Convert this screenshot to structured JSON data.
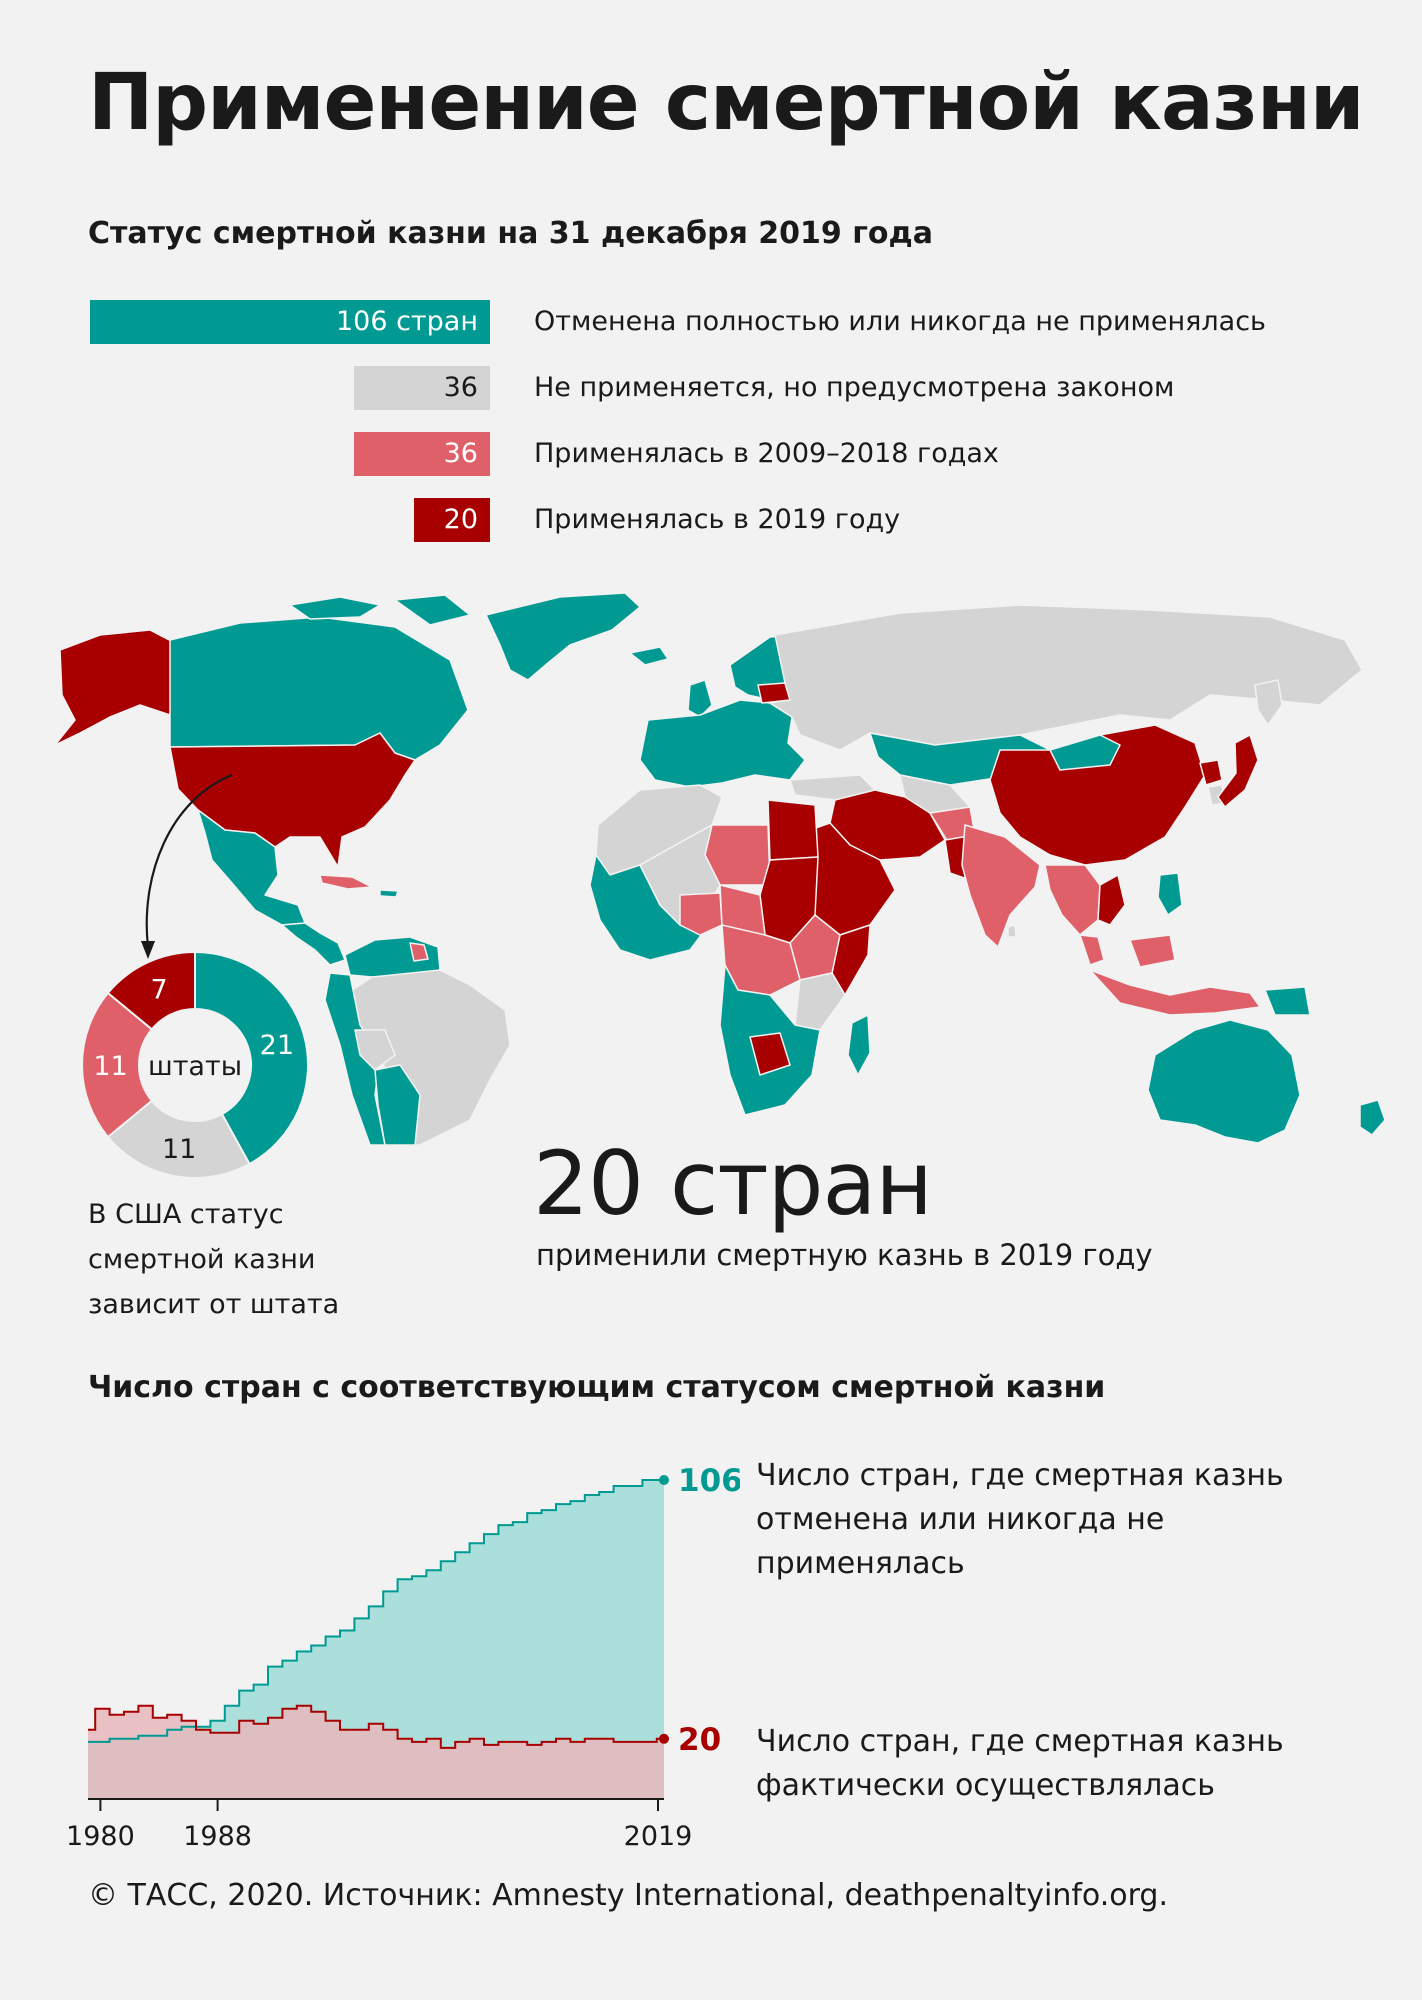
{
  "title": "Применение смертной казни",
  "status_section": {
    "heading": "Статус смертной казни на 31 декабря 2019 года",
    "legend": [
      {
        "value": 106,
        "value_text": "106 стран",
        "label": "Отменена полностью или никогда не применялась",
        "color": "#009a93",
        "text_color": "#ffffff"
      },
      {
        "value": 36,
        "value_text": "36",
        "label": "Не применяется, но предусмотрена законом",
        "color": "#d4d4d4",
        "text_color": "#1a1a1a"
      },
      {
        "value": 36,
        "value_text": "36",
        "label": "Применялась в 2009–2018 годах",
        "color": "#e0606a",
        "text_color": "#ffffff"
      },
      {
        "value": 20,
        "value_text": "20",
        "label": "Применялась в 2019 году",
        "color": "#a80000",
        "text_color": "#ffffff"
      }
    ]
  },
  "us_states": {
    "center_label": "штаты",
    "note": "В США статус смертной казни зависит от штата",
    "segments": [
      {
        "value": 21,
        "color": "#009a93",
        "text_color": "#ffffff"
      },
      {
        "value": 11,
        "color": "#d4d4d4",
        "text_color": "#1a1a1a"
      },
      {
        "value": 11,
        "color": "#e0606a",
        "text_color": "#ffffff"
      },
      {
        "value": 7,
        "color": "#a80000",
        "text_color": "#ffffff"
      }
    ]
  },
  "highlight": {
    "number": "20 стран",
    "caption": "применили смертную казнь в 2019 году"
  },
  "count_section": {
    "heading": "Число стран с соответствующим статусом смертной казни"
  },
  "chart_data": [
    {
      "type": "bar",
      "categories": [
        "Отменена полностью или никогда не применялась",
        "Не применяется, но предусмотрена законом",
        "Применялась в 2009–2018 годах",
        "Применялась в 2019 году"
      ],
      "values": [
        106,
        36,
        36,
        20
      ]
    },
    {
      "type": "pie",
      "center_label": "штаты",
      "values": [
        21,
        11,
        11,
        7
      ]
    },
    {
      "type": "area",
      "step": true,
      "x_ticks": [
        "1980",
        "1988",
        "2019"
      ],
      "xlim": [
        1979,
        2019
      ],
      "ylim": [
        0,
        106
      ],
      "years": [
        1979,
        1980,
        1981,
        1982,
        1983,
        1984,
        1985,
        1986,
        1987,
        1988,
        1989,
        1990,
        1991,
        1992,
        1993,
        1994,
        1995,
        1996,
        1997,
        1998,
        1999,
        2000,
        2001,
        2002,
        2003,
        2004,
        2005,
        2006,
        2007,
        2008,
        2009,
        2010,
        2011,
        2012,
        2013,
        2014,
        2015,
        2016,
        2017,
        2018,
        2019
      ],
      "series": [
        {
          "label": "Число стран, где смертная казнь отменена или никогда не применялась",
          "end_label": "106",
          "color": "#009a93",
          "fill": "#abdfdc",
          "values": [
            19,
            19,
            20,
            20,
            21,
            21,
            23,
            24,
            24,
            26,
            31,
            36,
            38,
            44,
            46,
            49,
            51,
            54,
            56,
            60,
            64,
            69,
            73,
            74,
            76,
            79,
            82,
            85,
            88,
            91,
            92,
            95,
            96,
            98,
            99,
            101,
            102,
            104,
            104,
            106,
            106
          ]
        },
        {
          "label": "Число стран, где смертная казнь фактически осуществлялась",
          "end_label": "20",
          "color": "#a80000",
          "fill": "#e8b9bc",
          "values": [
            23,
            30,
            28,
            29,
            31,
            27,
            28,
            26,
            23,
            22,
            22,
            26,
            25,
            27,
            30,
            31,
            29,
            26,
            23,
            23,
            25,
            23,
            20,
            19,
            20,
            17,
            19,
            20,
            18,
            19,
            19,
            18,
            19,
            20,
            19,
            20,
            20,
            19,
            19,
            19,
            20
          ]
        }
      ]
    }
  ],
  "footer": "© ТАСС, 2020. Источник: Amnesty International, deathpenaltyinfo.org."
}
